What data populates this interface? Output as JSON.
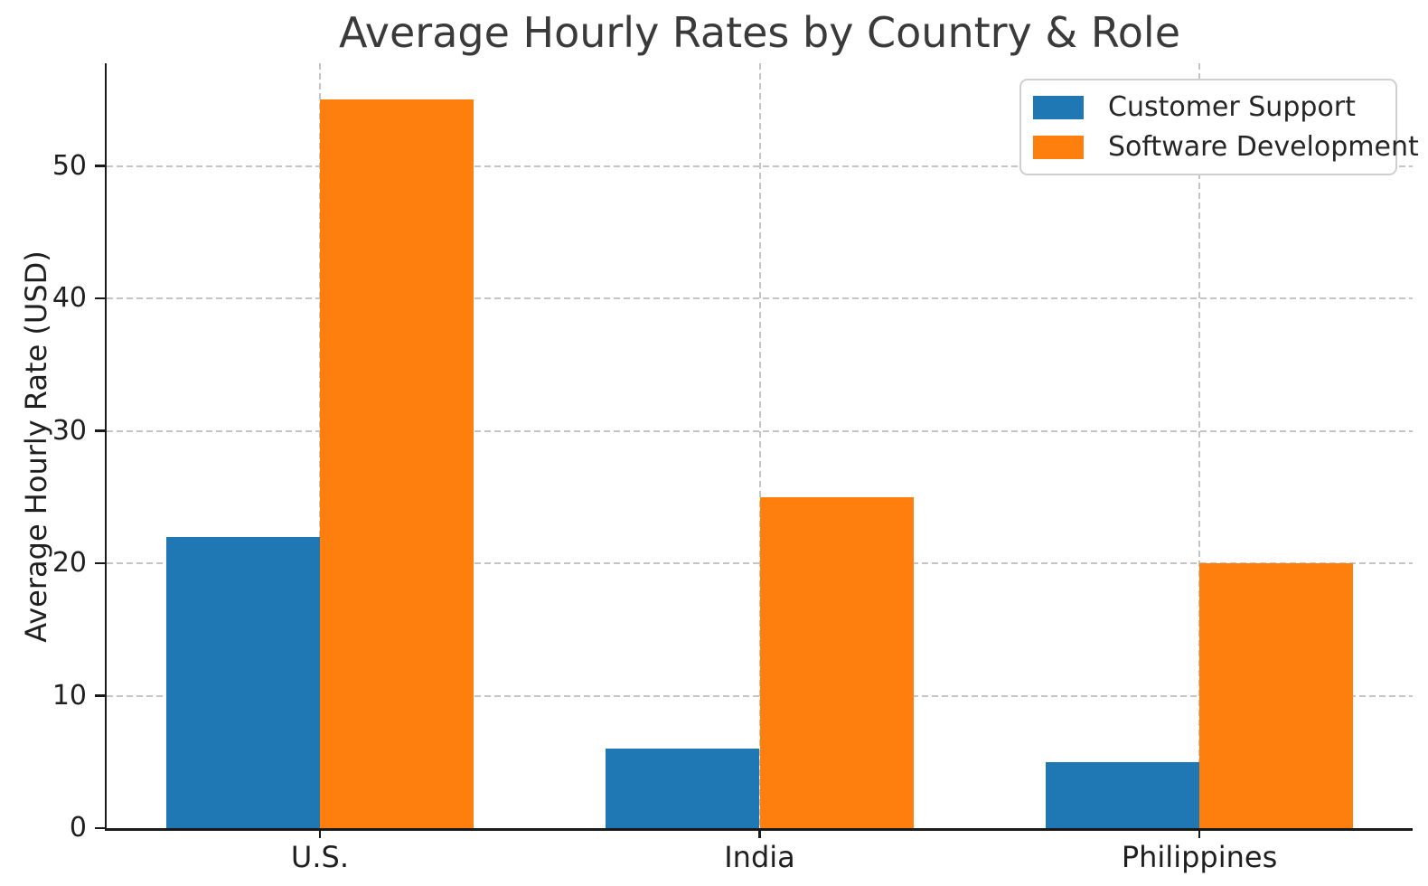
{
  "chart_data": {
    "type": "bar",
    "title": "Average Hourly Rates by Country & Role",
    "xlabel": "",
    "ylabel": "Average Hourly Rate (USD)",
    "categories": [
      "U.S.",
      "India",
      "Philippines"
    ],
    "series": [
      {
        "name": "Customer Support",
        "color": "#1f77b4",
        "values": [
          22,
          6,
          5
        ]
      },
      {
        "name": "Software Development",
        "color": "#ff7f0e",
        "values": [
          55,
          25,
          20
        ]
      }
    ],
    "yticks": [
      0,
      10,
      20,
      30,
      40,
      50
    ],
    "ylim": [
      0,
      57.75
    ],
    "xlim": [
      -0.485,
      2.485
    ],
    "bar_width": 0.35,
    "grid": true,
    "grid_style": "dashed",
    "legend_position": "upper-right"
  },
  "style": {
    "background": "#ffffff",
    "grid_color": "#c4c4c4",
    "spine_color": "#1a1a1a",
    "tick_text_color": "#1f1f1f",
    "title_color": "#3a3a3a",
    "legend_border_color": "#cfcfcf"
  }
}
